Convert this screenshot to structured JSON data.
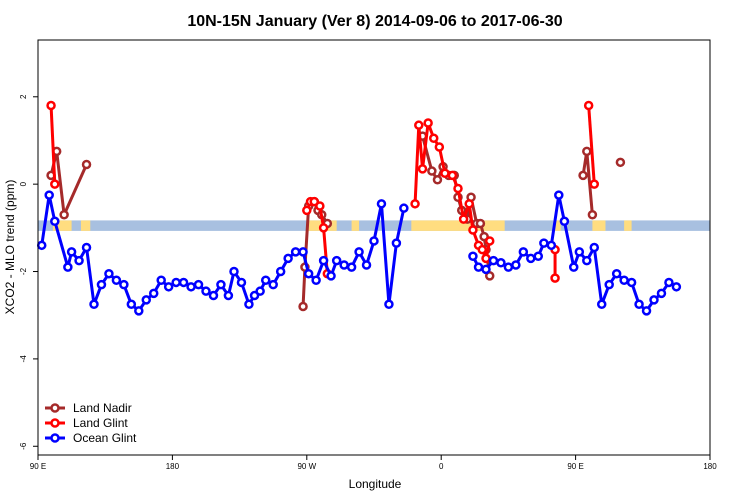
{
  "chart_data": {
    "type": "line",
    "title": "10N-15N January (Ver 8)   2014-09-06 to 2017-06-30",
    "xlabel": "Longitude",
    "ylabel": "XCO2 - MLO trend (ppm)",
    "xlim": [
      0,
      360
    ],
    "ylim": [
      -6.2,
      3.3
    ],
    "x_ticks": [
      {
        "value": 0,
        "label": "90 E"
      },
      {
        "value": 72,
        "label": "180"
      },
      {
        "value": 144,
        "label": "90 W"
      },
      {
        "value": 216,
        "label": "0"
      },
      {
        "value": 288,
        "label": "90 E"
      },
      {
        "value": 360,
        "label": "180"
      }
    ],
    "y_ticks": [
      {
        "value": 2,
        "label": "2"
      },
      {
        "value": 0,
        "label": "0"
      },
      {
        "value": -2,
        "label": "-2"
      },
      {
        "value": -4,
        "label": "-4"
      },
      {
        "value": -6,
        "label": "-6"
      }
    ],
    "band": {
      "ymin": -1.07,
      "ymax": -0.83,
      "color": "#a8c0e0",
      "highlight_color": "#ffdd80"
    },
    "band_highlights": [
      {
        "x1": 8,
        "x2": 18
      },
      {
        "x1": 23,
        "x2": 28
      },
      {
        "x1": 144,
        "x2": 160
      },
      {
        "x1": 168,
        "x2": 172
      },
      {
        "x1": 200,
        "x2": 250
      },
      {
        "x1": 276,
        "x2": 280
      },
      {
        "x1": 297,
        "x2": 304
      },
      {
        "x1": 314,
        "x2": 318
      }
    ],
    "legend_position": "bottom-left",
    "series": [
      {
        "name": "Land Nadir",
        "color": "#a52a2a",
        "segments": [
          [
            [
              7,
              0.2
            ],
            [
              10,
              0.75
            ],
            [
              14,
              -0.7
            ],
            [
              26,
              0.45
            ]
          ],
          [
            [
              142,
              -2.8
            ],
            [
              143,
              -1.9
            ],
            [
              145,
              -0.5
            ],
            [
              148,
              -0.4
            ],
            [
              150,
              -0.6
            ],
            [
              152,
              -0.7
            ],
            [
              155,
              -0.9
            ]
          ],
          [
            [
              206,
              1.1
            ],
            [
              211,
              0.3
            ],
            [
              214,
              0.1
            ],
            [
              217,
              0.4
            ],
            [
              220,
              0.2
            ],
            [
              223,
              0.2
            ],
            [
              225,
              -0.3
            ],
            [
              227,
              -0.6
            ],
            [
              230,
              -0.8
            ],
            [
              232,
              -0.3
            ],
            [
              235,
              -0.9
            ],
            [
              237,
              -0.9
            ],
            [
              239,
              -1.2
            ],
            [
              240,
              -1.5
            ],
            [
              242,
              -2.1
            ]
          ],
          [
            [
              292,
              0.2
            ],
            [
              294,
              0.75
            ],
            [
              297,
              -0.7
            ]
          ],
          [
            [
              312,
              0.5
            ]
          ]
        ]
      },
      {
        "name": "Land Glint",
        "color": "#ff0000",
        "segments": [
          [
            [
              7,
              1.8
            ],
            [
              9,
              0.0
            ]
          ],
          [
            [
              144,
              -0.6
            ],
            [
              146,
              -0.4
            ],
            [
              148,
              -0.4
            ],
            [
              151,
              -0.5
            ],
            [
              153,
              -1.0
            ],
            [
              155,
              -2.05
            ]
          ],
          [
            [
              202,
              -0.45
            ],
            [
              204,
              1.35
            ],
            [
              206,
              0.35
            ],
            [
              209,
              1.4
            ],
            [
              212,
              1.05
            ],
            [
              215,
              0.85
            ],
            [
              218,
              0.25
            ],
            [
              222,
              0.2
            ],
            [
              225,
              -0.1
            ],
            [
              228,
              -0.8
            ],
            [
              231,
              -0.45
            ],
            [
              233,
              -1.05
            ],
            [
              236,
              -1.4
            ],
            [
              238,
              -1.5
            ],
            [
              240,
              -1.7
            ],
            [
              242,
              -1.3
            ]
          ],
          [
            [
              277,
              -1.5
            ],
            [
              277,
              -2.15
            ]
          ],
          [
            [
              295,
              1.8
            ],
            [
              298,
              0.0
            ]
          ]
        ]
      },
      {
        "name": "Ocean Glint",
        "color": "#0000ff",
        "segments": [
          [
            [
              2,
              -1.4
            ],
            [
              6,
              -0.25
            ],
            [
              9,
              -0.85
            ],
            [
              16,
              -1.9
            ],
            [
              18,
              -1.55
            ],
            [
              22,
              -1.75
            ],
            [
              26,
              -1.45
            ],
            [
              30,
              -2.75
            ],
            [
              34,
              -2.3
            ],
            [
              38,
              -2.05
            ],
            [
              42,
              -2.2
            ],
            [
              46,
              -2.3
            ],
            [
              50,
              -2.75
            ],
            [
              54,
              -2.9
            ],
            [
              58,
              -2.65
            ],
            [
              62,
              -2.5
            ],
            [
              66,
              -2.2
            ],
            [
              70,
              -2.35
            ],
            [
              74,
              -2.25
            ],
            [
              78,
              -2.25
            ],
            [
              82,
              -2.35
            ],
            [
              86,
              -2.3
            ],
            [
              90,
              -2.45
            ],
            [
              94,
              -2.55
            ],
            [
              98,
              -2.3
            ],
            [
              102,
              -2.55
            ],
            [
              105,
              -2.0
            ],
            [
              109,
              -2.25
            ],
            [
              113,
              -2.75
            ],
            [
              116,
              -2.55
            ],
            [
              119,
              -2.45
            ],
            [
              122,
              -2.2
            ],
            [
              126,
              -2.3
            ],
            [
              130,
              -2.0
            ],
            [
              134,
              -1.7
            ],
            [
              138,
              -1.55
            ],
            [
              142,
              -1.55
            ],
            [
              145,
              -2.05
            ],
            [
              149,
              -2.2
            ],
            [
              153,
              -1.75
            ],
            [
              157,
              -2.1
            ],
            [
              160,
              -1.75
            ],
            [
              164,
              -1.85
            ],
            [
              168,
              -1.9
            ],
            [
              172,
              -1.55
            ],
            [
              176,
              -1.85
            ],
            [
              180,
              -1.3
            ],
            [
              184,
              -0.45
            ],
            [
              188,
              -2.75
            ],
            [
              192,
              -1.35
            ],
            [
              196,
              -0.55
            ]
          ],
          [
            [
              233,
              -1.65
            ],
            [
              236,
              -1.9
            ],
            [
              240,
              -1.95
            ],
            [
              244,
              -1.75
            ],
            [
              248,
              -1.8
            ],
            [
              252,
              -1.9
            ],
            [
              256,
              -1.85
            ],
            [
              260,
              -1.55
            ],
            [
              264,
              -1.7
            ],
            [
              268,
              -1.65
            ],
            [
              271,
              -1.35
            ],
            [
              275,
              -1.4
            ],
            [
              279,
              -0.25
            ],
            [
              282,
              -0.85
            ],
            [
              287,
              -1.9
            ],
            [
              290,
              -1.55
            ],
            [
              294,
              -1.75
            ],
            [
              298,
              -1.45
            ],
            [
              302,
              -2.75
            ],
            [
              306,
              -2.3
            ],
            [
              310,
              -2.05
            ],
            [
              314,
              -2.2
            ],
            [
              318,
              -2.25
            ],
            [
              322,
              -2.75
            ],
            [
              326,
              -2.9
            ],
            [
              330,
              -2.65
            ],
            [
              334,
              -2.5
            ],
            [
              338,
              -2.25
            ],
            [
              342,
              -2.35
            ]
          ]
        ]
      }
    ]
  }
}
